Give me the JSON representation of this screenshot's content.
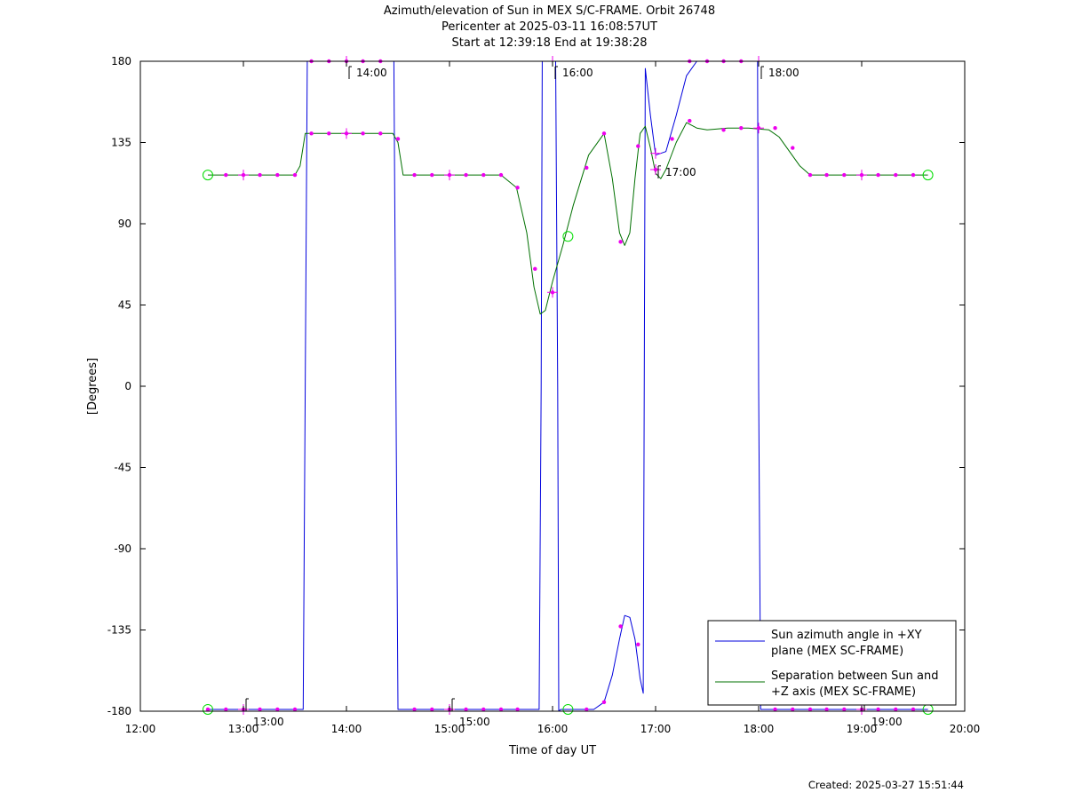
{
  "title": {
    "line1": "Azimuth/elevation of Sun in MEX S/C-FRAME.  Orbit 26748",
    "line2": "Pericenter at 2025-03-11 16:08:57UT",
    "line3": "Start at 12:39:18 End at 19:38:28"
  },
  "footer": {
    "created": "Created: 2025-03-27 15:51:44"
  },
  "colors": {
    "azimuth": "#0000dd",
    "separation": "#007000",
    "marker": "#ee00ee",
    "endpoint": "#00dd00"
  },
  "chart_data": {
    "type": "line",
    "xlabel": "Time of day UT",
    "ylabel": "[Degrees]",
    "xlim": [
      12.0,
      20.0
    ],
    "ylim": [
      -180,
      180
    ],
    "x_ticks": [
      {
        "v": 12,
        "label": "12:00"
      },
      {
        "v": 13,
        "label": "13:00"
      },
      {
        "v": 14,
        "label": "14:00"
      },
      {
        "v": 15,
        "label": "15:00"
      },
      {
        "v": 16,
        "label": "16:00"
      },
      {
        "v": 17,
        "label": "17:00"
      },
      {
        "v": 18,
        "label": "18:00"
      },
      {
        "v": 19,
        "label": "19:00"
      },
      {
        "v": 20,
        "label": "20:00"
      }
    ],
    "y_ticks": [
      {
        "v": 180,
        "label": "180"
      },
      {
        "v": 135,
        "label": "135"
      },
      {
        "v": 90,
        "label": "90"
      },
      {
        "v": 45,
        "label": "45"
      },
      {
        "v": 0,
        "label": "0"
      },
      {
        "v": -45,
        "label": "-45"
      },
      {
        "v": -90,
        "label": "-90"
      },
      {
        "v": -135,
        "label": "-135"
      },
      {
        "v": -180,
        "label": "-180"
      }
    ],
    "hour_annotations": [
      {
        "x": 13.0,
        "y": -180,
        "label": "13:00"
      },
      {
        "x": 14.0,
        "y": 180,
        "label": "14:00"
      },
      {
        "x": 15.0,
        "y": -180,
        "label": "15:00"
      },
      {
        "x": 16.0,
        "y": 180,
        "label": "16:00"
      },
      {
        "x": 17.0,
        "y": 125,
        "label": "17:00"
      },
      {
        "x": 18.0,
        "y": 180,
        "label": "18:00"
      },
      {
        "x": 19.0,
        "y": -180,
        "label": "19:00"
      }
    ],
    "series": [
      {
        "name": "Sun azimuth angle in +XY plane (MEX SC-FRAME)",
        "legend_lines": [
          "Sun azimuth angle in +XY",
          "plane (MEX SC-FRAME)"
        ],
        "x": [
          12.655,
          13.0,
          13.5,
          13.58,
          13.6,
          13.62,
          14.0,
          14.4,
          14.46,
          14.48,
          14.5,
          15.0,
          15.5,
          15.85,
          15.87,
          15.89,
          15.9,
          15.95,
          16.0,
          16.03,
          16.05,
          16.06,
          16.08,
          16.2,
          16.4,
          16.5,
          16.58,
          16.65,
          16.7,
          16.75,
          16.8,
          16.85,
          16.88,
          16.9,
          16.95,
          17.0,
          17.1,
          17.2,
          17.3,
          17.4,
          17.6,
          17.8,
          17.99,
          18.0,
          18.02,
          18.05,
          18.5,
          19.0,
          19.5,
          19.643
        ],
        "y": [
          -179,
          -179,
          -179,
          -179,
          0,
          180,
          180,
          180,
          180,
          0,
          -179,
          -179,
          -179,
          -179,
          -179,
          0,
          180,
          180,
          180,
          180,
          0,
          -180,
          -179,
          -179,
          -179,
          -175,
          -160,
          -140,
          -127,
          -128,
          -140,
          -162,
          -170,
          176,
          150,
          128,
          130,
          150,
          172,
          180,
          180,
          180,
          180,
          0,
          -179,
          -179,
          -179,
          -179,
          -179,
          -179
        ]
      },
      {
        "name": "Separation between Sun and +Z axis (MEX SC-FRAME)",
        "legend_lines": [
          "Separation between Sun and",
          "+Z axis (MEX SC-FRAME)"
        ],
        "x": [
          12.655,
          13.0,
          13.5,
          13.55,
          13.6,
          14.0,
          14.45,
          14.5,
          14.55,
          15.0,
          15.5,
          15.65,
          15.75,
          15.82,
          15.88,
          15.93,
          16.0,
          16.1,
          16.2,
          16.35,
          16.5,
          16.58,
          16.65,
          16.7,
          16.75,
          16.8,
          16.85,
          16.9,
          16.95,
          17.0,
          17.05,
          17.1,
          17.2,
          17.3,
          17.4,
          17.5,
          17.7,
          17.9,
          18.1,
          18.2,
          18.3,
          18.4,
          18.5,
          19.0,
          19.5,
          19.643
        ],
        "y": [
          117,
          117,
          117,
          122,
          140,
          140,
          140,
          135,
          117,
          117,
          117,
          110,
          85,
          55,
          40,
          42,
          58,
          78,
          100,
          128,
          140,
          115,
          85,
          78,
          85,
          115,
          140,
          144,
          132,
          118,
          115,
          120,
          135,
          146,
          143,
          142,
          143,
          143,
          142,
          138,
          130,
          122,
          117,
          117,
          117,
          117
        ]
      }
    ],
    "markers": [
      {
        "x": 12.655,
        "y": -179
      },
      {
        "x": 12.83,
        "y": -179
      },
      {
        "x": 13.0,
        "y": -179
      },
      {
        "x": 13.16,
        "y": -179
      },
      {
        "x": 13.33,
        "y": -179
      },
      {
        "x": 13.5,
        "y": -179
      },
      {
        "x": 13.66,
        "y": 180
      },
      {
        "x": 13.83,
        "y": 180
      },
      {
        "x": 14.0,
        "y": 180
      },
      {
        "x": 14.16,
        "y": 180
      },
      {
        "x": 14.33,
        "y": 180
      },
      {
        "x": 14.66,
        "y": -179
      },
      {
        "x": 14.83,
        "y": -179
      },
      {
        "x": 15.0,
        "y": -179
      },
      {
        "x": 15.16,
        "y": -179
      },
      {
        "x": 15.33,
        "y": -179
      },
      {
        "x": 15.5,
        "y": -179
      },
      {
        "x": 15.66,
        "y": -179
      },
      {
        "x": 16.33,
        "y": -179
      },
      {
        "x": 16.5,
        "y": -175
      },
      {
        "x": 16.66,
        "y": -133
      },
      {
        "x": 16.83,
        "y": -143
      },
      {
        "x": 17.16,
        "y": 137
      },
      {
        "x": 17.33,
        "y": 180
      },
      {
        "x": 17.5,
        "y": 180
      },
      {
        "x": 17.66,
        "y": 180
      },
      {
        "x": 17.83,
        "y": 180
      },
      {
        "x": 18.16,
        "y": -179
      },
      {
        "x": 18.33,
        "y": -179
      },
      {
        "x": 18.5,
        "y": -179
      },
      {
        "x": 18.66,
        "y": -179
      },
      {
        "x": 18.83,
        "y": -179
      },
      {
        "x": 19.0,
        "y": -179
      },
      {
        "x": 19.16,
        "y": -179
      },
      {
        "x": 19.33,
        "y": -179
      },
      {
        "x": 19.5,
        "y": -179
      },
      {
        "x": 12.83,
        "y": 117
      },
      {
        "x": 13.0,
        "y": 117
      },
      {
        "x": 13.16,
        "y": 117
      },
      {
        "x": 13.33,
        "y": 117
      },
      {
        "x": 13.5,
        "y": 117
      },
      {
        "x": 13.66,
        "y": 140
      },
      {
        "x": 13.83,
        "y": 140
      },
      {
        "x": 14.0,
        "y": 140
      },
      {
        "x": 14.16,
        "y": 140
      },
      {
        "x": 14.33,
        "y": 140
      },
      {
        "x": 14.5,
        "y": 137
      },
      {
        "x": 14.66,
        "y": 117
      },
      {
        "x": 14.83,
        "y": 117
      },
      {
        "x": 15.0,
        "y": 117
      },
      {
        "x": 15.16,
        "y": 117
      },
      {
        "x": 15.33,
        "y": 117
      },
      {
        "x": 15.5,
        "y": 117
      },
      {
        "x": 15.66,
        "y": 110
      },
      {
        "x": 15.83,
        "y": 65
      },
      {
        "x": 16.0,
        "y": 52
      },
      {
        "x": 16.33,
        "y": 121
      },
      {
        "x": 16.5,
        "y": 140
      },
      {
        "x": 16.66,
        "y": 80
      },
      {
        "x": 16.83,
        "y": 133
      },
      {
        "x": 17.0,
        "y": 120
      },
      {
        "x": 17.33,
        "y": 147
      },
      {
        "x": 17.66,
        "y": 142
      },
      {
        "x": 17.83,
        "y": 143
      },
      {
        "x": 18.0,
        "y": 143
      },
      {
        "x": 18.16,
        "y": 143
      },
      {
        "x": 18.33,
        "y": 132
      },
      {
        "x": 18.5,
        "y": 117
      },
      {
        "x": 18.66,
        "y": 117
      },
      {
        "x": 18.83,
        "y": 117
      },
      {
        "x": 19.0,
        "y": 117
      },
      {
        "x": 19.16,
        "y": 117
      },
      {
        "x": 19.33,
        "y": 117
      },
      {
        "x": 19.5,
        "y": 117
      }
    ],
    "crosses": [
      {
        "x": 13.0,
        "y": -179
      },
      {
        "x": 14.0,
        "y": 180
      },
      {
        "x": 15.0,
        "y": -179
      },
      {
        "x": 16.0,
        "y": 180
      },
      {
        "x": 17.0,
        "y": 129
      },
      {
        "x": 18.0,
        "y": 180
      },
      {
        "x": 19.0,
        "y": -179
      },
      {
        "x": 13.0,
        "y": 117
      },
      {
        "x": 14.0,
        "y": 140
      },
      {
        "x": 15.0,
        "y": 117
      },
      {
        "x": 16.0,
        "y": 52
      },
      {
        "x": 17.0,
        "y": 120
      },
      {
        "x": 18.0,
        "y": 143
      },
      {
        "x": 19.0,
        "y": 117
      }
    ],
    "endpoints": [
      {
        "x": 12.655,
        "y": 117
      },
      {
        "x": 12.655,
        "y": -179
      },
      {
        "x": 16.15,
        "y": 83
      },
      {
        "x": 16.15,
        "y": -179
      },
      {
        "x": 19.643,
        "y": 117
      },
      {
        "x": 19.643,
        "y": -179
      }
    ],
    "legend_position": "bottom-right"
  }
}
